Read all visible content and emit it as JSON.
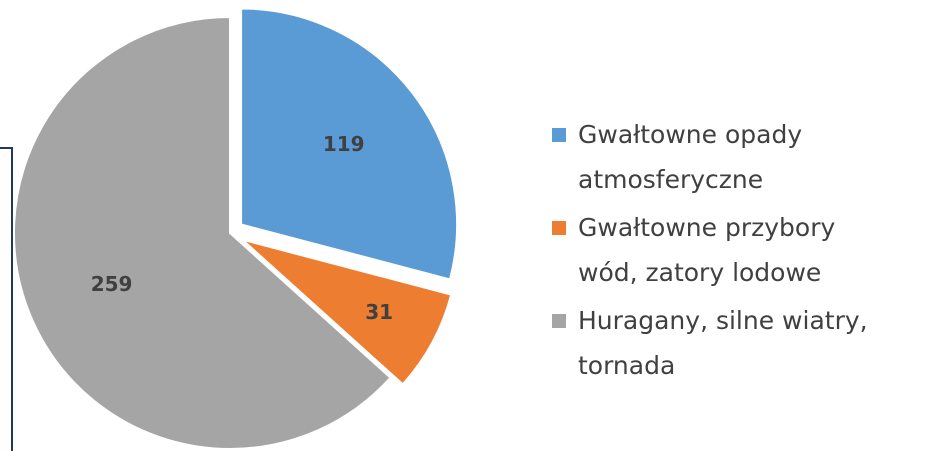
{
  "chart_data": {
    "type": "pie",
    "categories": [
      "Gwałtowne opady atmosferyczne",
      "Gwałtowne przybory wód, zatory lodowe",
      "Huragany, silne wiatry, tornada"
    ],
    "values": [
      119,
      31,
      259
    ],
    "colors": [
      "#5b9bd5",
      "#ed7d31",
      "#a5a5a5"
    ]
  }
}
